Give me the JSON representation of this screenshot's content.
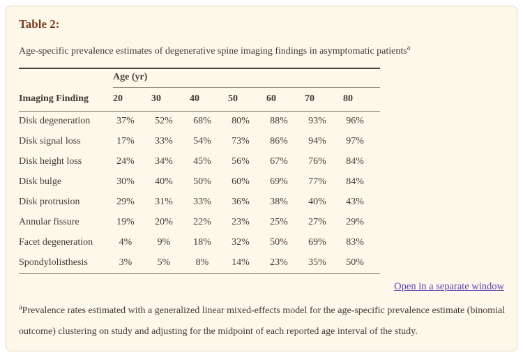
{
  "panel": {
    "title": "Table 2:",
    "caption": "Age-specific prevalence estimates of degenerative spine imaging findings in asymptomatic patients",
    "caption_sup": "a",
    "link_label": "Open in a separate window",
    "footnote_sup": "a",
    "footnote": "Prevalence rates estimated with a generalized linear mixed-effects model for the age-specific prevalence estimate (binomial outcome) clustering on study and adjusting for the midpoint of each reported age interval of the study."
  },
  "table": {
    "group_header": "Age (yr)",
    "col1_header": "Imaging Finding",
    "age_columns": [
      "20",
      "30",
      "40",
      "50",
      "60",
      "70",
      "80"
    ],
    "rows": [
      {
        "label": "Disk degeneration",
        "values": [
          "37%",
          "52%",
          "68%",
          "80%",
          "88%",
          "93%",
          "96%"
        ]
      },
      {
        "label": "Disk signal loss",
        "values": [
          "17%",
          "33%",
          "54%",
          "73%",
          "86%",
          "94%",
          "97%"
        ]
      },
      {
        "label": "Disk height loss",
        "values": [
          "24%",
          "34%",
          "45%",
          "56%",
          "67%",
          "76%",
          "84%"
        ]
      },
      {
        "label": "Disk bulge",
        "values": [
          "30%",
          "40%",
          "50%",
          "60%",
          "69%",
          "77%",
          "84%"
        ]
      },
      {
        "label": "Disk protrusion",
        "values": [
          "29%",
          "31%",
          "33%",
          "36%",
          "38%",
          "40%",
          "43%"
        ]
      },
      {
        "label": "Annular fissure",
        "values": [
          "19%",
          "20%",
          "22%",
          "23%",
          "25%",
          "27%",
          "29%"
        ]
      },
      {
        "label": "Facet degeneration",
        "values": [
          "4%",
          "9%",
          "18%",
          "32%",
          "50%",
          "69%",
          "83%"
        ]
      },
      {
        "label": "Spondylolisthesis",
        "values": [
          "3%",
          "5%",
          "8%",
          "14%",
          "23%",
          "35%",
          "50%"
        ]
      }
    ]
  },
  "chart_data": {
    "type": "table",
    "title": "Age-specific prevalence estimates of degenerative spine imaging findings in asymptomatic patients",
    "categories": [
      20,
      30,
      40,
      50,
      60,
      70,
      80
    ],
    "x_group_label": "Age (yr)",
    "row_label_header": "Imaging Finding",
    "series": [
      {
        "name": "Disk degeneration",
        "values": [
          37,
          52,
          68,
          80,
          88,
          93,
          96
        ]
      },
      {
        "name": "Disk signal loss",
        "values": [
          17,
          33,
          54,
          73,
          86,
          94,
          97
        ]
      },
      {
        "name": "Disk height loss",
        "values": [
          24,
          34,
          45,
          56,
          67,
          76,
          84
        ]
      },
      {
        "name": "Disk bulge",
        "values": [
          30,
          40,
          50,
          60,
          69,
          77,
          84
        ]
      },
      {
        "name": "Disk protrusion",
        "values": [
          29,
          31,
          33,
          36,
          38,
          40,
          43
        ]
      },
      {
        "name": "Annular fissure",
        "values": [
          19,
          20,
          22,
          23,
          25,
          27,
          29
        ]
      },
      {
        "name": "Facet degeneration",
        "values": [
          4,
          9,
          18,
          32,
          50,
          69,
          83
        ]
      },
      {
        "name": "Spondylolisthesis",
        "values": [
          3,
          5,
          8,
          14,
          23,
          35,
          50
        ]
      }
    ],
    "unit": "%"
  },
  "colors": {
    "panel_background": "#fdf8e9",
    "panel_border": "#e7d5c0",
    "title_accent": "#7c3a1c",
    "body_text": "#3f3d33",
    "link": "#5b3db6",
    "rule_dark": "#45433b",
    "rule_light": "#95927f"
  }
}
